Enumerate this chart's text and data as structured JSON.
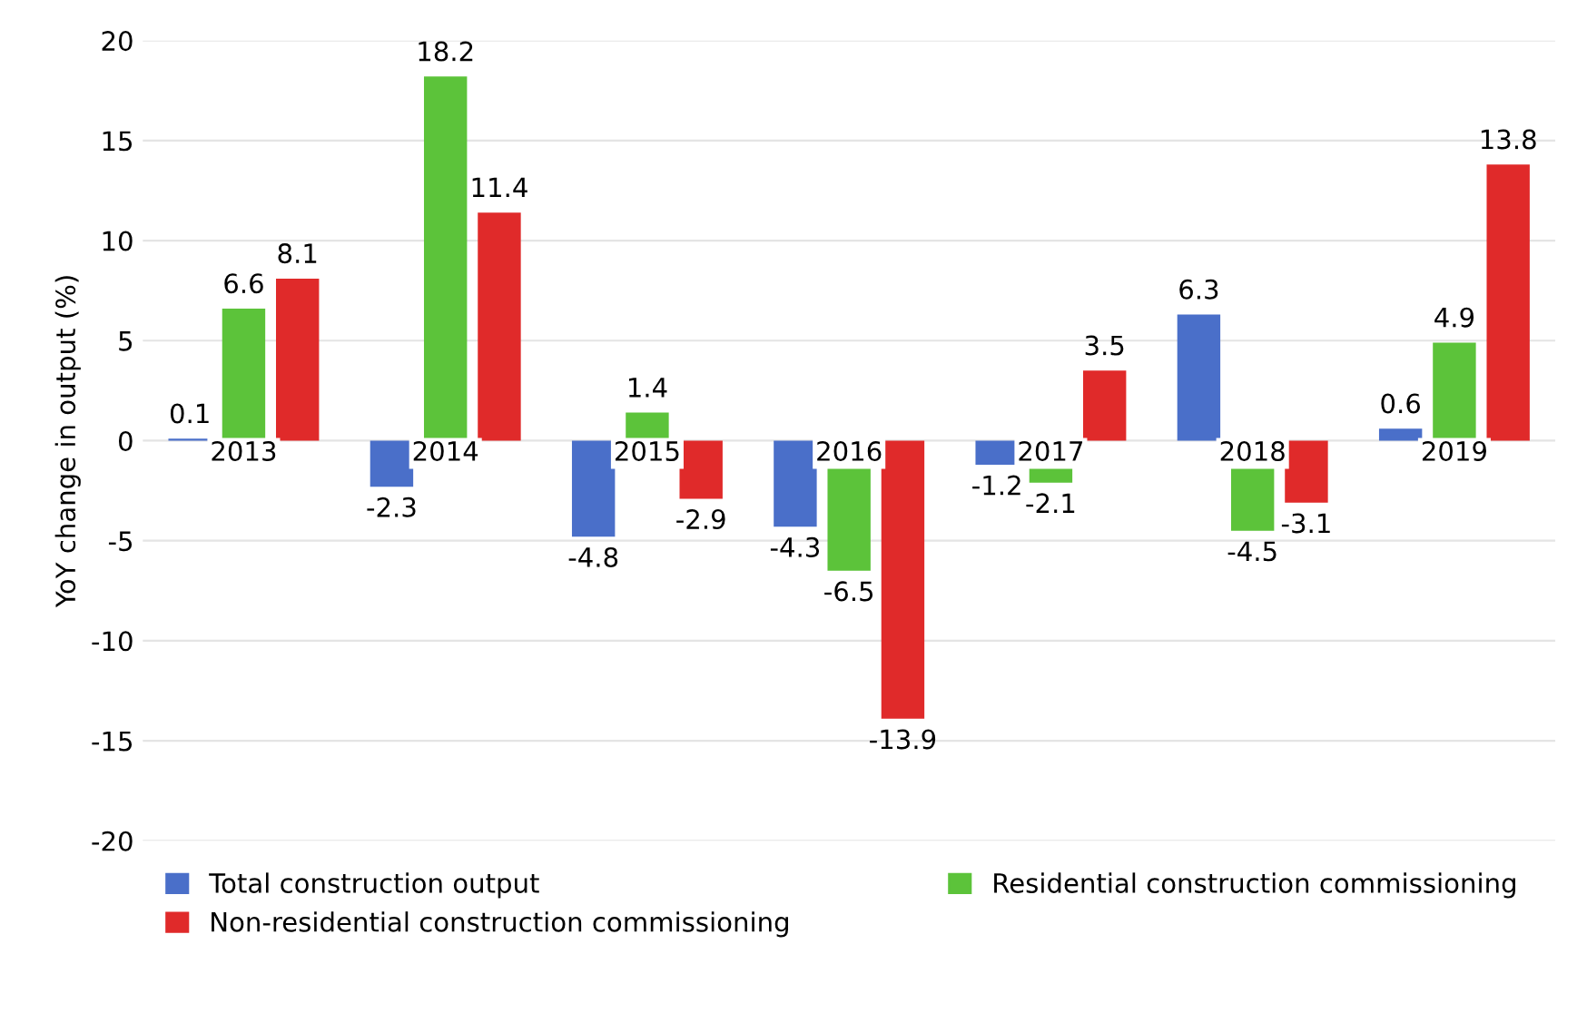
{
  "chart_data": {
    "type": "bar",
    "ylabel": "YoY change in output (%)",
    "categories": [
      "2013",
      "2014",
      "2015",
      "2016",
      "2017",
      "2018",
      "2019"
    ],
    "series": [
      {
        "name": "Total construction output",
        "color": "#4a6fc9",
        "values": [
          0.1,
          -2.3,
          -4.8,
          -4.3,
          -1.2,
          6.3,
          0.6
        ]
      },
      {
        "name": "Residential construction commissioning",
        "color": "#5cc33a",
        "values": [
          6.6,
          18.2,
          1.4,
          -6.5,
          -2.1,
          -4.5,
          4.9
        ]
      },
      {
        "name": "Non-residential construction commissioning",
        "color": "#e02a2a",
        "values": [
          8.1,
          11.4,
          -2.9,
          -13.9,
          3.5,
          -3.1,
          13.8
        ]
      }
    ],
    "ylim": [
      -20,
      20
    ],
    "yticks": [
      -20,
      -15,
      -10,
      -5,
      0,
      5,
      10,
      15,
      20
    ],
    "grid": "y",
    "legend": "bottom",
    "data_labels": true
  }
}
